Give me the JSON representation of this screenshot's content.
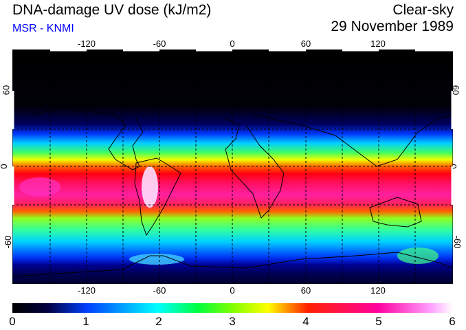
{
  "header": {
    "title": "DNA-damage UV dose (kJ/m2)",
    "subtitle": "MSR - KNMI",
    "condition": "Clear-sky",
    "date": "29 November 1989"
  },
  "map": {
    "lon_ticks": [
      "-120",
      "-60",
      "0",
      "60",
      "120"
    ],
    "lat_ticks": [
      "60",
      "0",
      "-60"
    ]
  },
  "colorbar": {
    "ticks": [
      "0",
      "1",
      "2",
      "3",
      "4",
      "5",
      "6"
    ]
  },
  "colors": {
    "subtitle": "#0000ff"
  }
}
